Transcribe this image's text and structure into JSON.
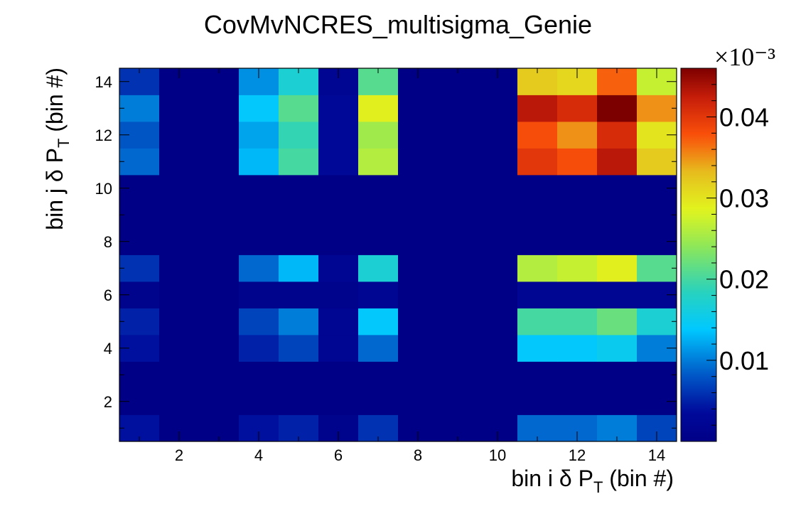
{
  "chart_data": {
    "type": "heatmap",
    "title": "CovMvNCRES_multisigma_Genie",
    "xlabel": "bin i δ P_T (bin #)",
    "ylabel": "bin j δ P_T (bin #)",
    "x_axis": {
      "range": [
        0.5,
        14.5
      ],
      "tick_labels": [
        "2",
        "4",
        "6",
        "8",
        "10",
        "12",
        "14"
      ]
    },
    "y_axis": {
      "range": [
        0.5,
        14.5
      ],
      "tick_labels": [
        "2",
        "4",
        "6",
        "8",
        "10",
        "12",
        "14"
      ]
    },
    "colorbar": {
      "range": [
        0.0,
        0.046
      ],
      "tick_labels": [
        "0.01",
        "0.02",
        "0.03",
        "0.04"
      ],
      "exponent_label": "×10⁻³",
      "colormap": "rainbow (dark blue → cyan → yellow → dark red)"
    },
    "bins_x": [
      1,
      2,
      3,
      4,
      5,
      6,
      7,
      8,
      9,
      10,
      11,
      12,
      13,
      14
    ],
    "bins_y": [
      1,
      2,
      3,
      4,
      5,
      6,
      7,
      8,
      9,
      10,
      11,
      12,
      13,
      14
    ],
    "z_rows_bottom_to_top": [
      [
        0.004,
        0,
        0,
        0.004,
        0.005,
        0.001,
        0.006,
        0,
        0,
        0,
        0.009,
        0.009,
        0.01,
        0.007
      ],
      [
        0,
        0,
        0,
        0,
        0,
        0,
        0,
        0,
        0,
        0,
        0,
        0,
        0,
        0
      ],
      [
        0,
        0,
        0,
        0,
        0,
        0,
        0,
        0,
        0,
        0,
        0,
        0,
        0,
        0
      ],
      [
        0.004,
        0,
        0,
        0.005,
        0.007,
        0.002,
        0.009,
        0,
        0,
        0,
        0.014,
        0.014,
        0.015,
        0.01
      ],
      [
        0.005,
        0,
        0,
        0.007,
        0.01,
        0.002,
        0.014,
        0,
        0,
        0,
        0.02,
        0.02,
        0.022,
        0.017
      ],
      [
        0.001,
        0,
        0,
        0.001,
        0.001,
        0.001,
        0.002,
        0,
        0,
        0,
        0.002,
        0.002,
        0.002,
        0.002
      ],
      [
        0.006,
        0,
        0,
        0.009,
        0.013,
        0.002,
        0.017,
        0,
        0,
        0,
        0.026,
        0.027,
        0.029,
        0.021
      ],
      [
        0,
        0,
        0,
        0,
        0,
        0,
        0,
        0,
        0,
        0,
        0,
        0,
        0,
        0
      ],
      [
        0,
        0,
        0,
        0,
        0,
        0,
        0,
        0,
        0,
        0,
        0,
        0,
        0,
        0
      ],
      [
        0,
        0,
        0,
        0,
        0,
        0,
        0,
        0,
        0,
        0,
        0,
        0,
        0,
        0
      ],
      [
        0.009,
        0,
        0,
        0.013,
        0.02,
        0.003,
        0.026,
        0,
        0,
        0,
        0.04,
        0.038,
        0.043,
        0.032
      ],
      [
        0.008,
        0,
        0,
        0.012,
        0.019,
        0.003,
        0.025,
        0,
        0,
        0,
        0.038,
        0.035,
        0.041,
        0.03
      ],
      [
        0.01,
        0,
        0,
        0.014,
        0.021,
        0.003,
        0.029,
        0,
        0,
        0,
        0.043,
        0.041,
        0.046,
        0.035
      ],
      [
        0.006,
        0,
        0,
        0.011,
        0.017,
        0.002,
        0.021,
        0,
        0,
        0,
        0.032,
        0.031,
        0.037,
        0.027
      ]
    ]
  }
}
